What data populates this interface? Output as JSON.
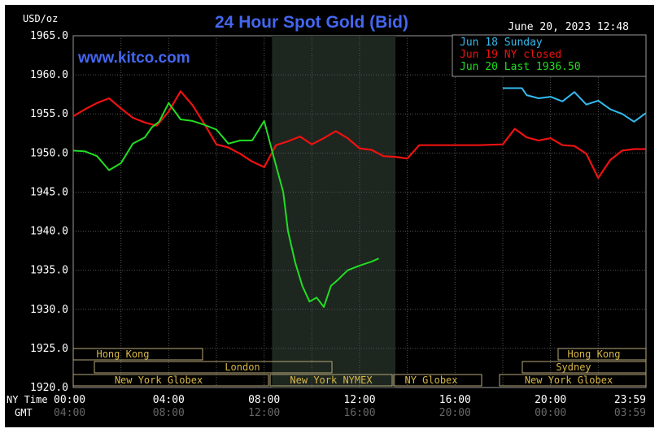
{
  "header": {
    "unit_label": "USD/oz",
    "title": "24 Hour Spot Gold (Bid)",
    "timestamp": "June 20, 2023 12:48",
    "watermark": "www.kitco.com"
  },
  "legend": [
    {
      "label": "Jun 18 Sunday",
      "color": "#33bbee"
    },
    {
      "label": "Jun 19 NY closed",
      "color": "#ee1111"
    },
    {
      "label": "Jun 20 Last 1936.50",
      "color": "#22dd22"
    }
  ],
  "axis_labels": {
    "ny_time": "NY Time",
    "gmt": "GMT",
    "ny_ticks": [
      "00:00",
      "04:00",
      "08:00",
      "12:00",
      "16:00",
      "20:00",
      "23:59"
    ],
    "gmt_ticks": [
      "04:00",
      "08:00",
      "12:00",
      "16:00",
      "20:00",
      "00:00",
      "03:59"
    ]
  },
  "sessions": {
    "hong_kong": "Hong Kong",
    "london": "London",
    "ny_globex": "New York Globex",
    "ny_nymex": "New York NYMEX",
    "ny_globex_short": "NY Globex",
    "hong_kong_2": "Hong Kong",
    "sydney": "Sydney",
    "ny_globex_2": "New York Globex"
  },
  "chart_data": {
    "type": "line",
    "title": "24 Hour Spot Gold (Bid)",
    "ylabel": "USD/oz",
    "x_unit": "NY time (hours)",
    "xlim": [
      0,
      24
    ],
    "ylim": [
      1920,
      1965
    ],
    "y_ticks": [
      1920.0,
      1925.0,
      1930.0,
      1935.0,
      1940.0,
      1945.0,
      1950.0,
      1955.0,
      1960.0,
      1965.0
    ],
    "y_tick_labels": [
      "1920.0",
      "1925.0",
      "1930.0",
      "1935.0",
      "1940.0",
      "1945.0",
      "1950.0",
      "1955.0",
      "1960.0",
      "1965.0"
    ],
    "grid": true,
    "series": [
      {
        "name": "Jun 18 Sunday",
        "color": "#33bbee",
        "x": [
          18.0,
          18.8,
          19.0,
          19.5,
          20.0,
          20.5,
          21.0,
          21.5,
          22.0,
          22.5,
          23.0,
          23.5,
          23.99
        ],
        "y": [
          1958.3,
          1958.3,
          1957.4,
          1957.0,
          1957.2,
          1956.6,
          1957.8,
          1956.2,
          1956.7,
          1955.6,
          1955.0,
          1954.0,
          1955.1
        ]
      },
      {
        "name": "Jun 19 NY closed",
        "color": "#ee1111",
        "x": [
          0.0,
          0.5,
          1.0,
          1.5,
          2.0,
          2.5,
          3.0,
          3.5,
          4.0,
          4.5,
          5.0,
          5.5,
          6.0,
          6.5,
          7.0,
          7.5,
          8.0,
          8.5,
          9.0,
          9.5,
          10.0,
          10.5,
          11.0,
          11.5,
          12.0,
          12.5,
          13.0,
          13.5,
          14.0,
          14.5,
          15.0,
          16.0,
          17.0,
          18.0,
          18.5,
          19.0,
          19.5,
          20.0,
          20.5,
          21.0,
          21.5,
          22.0,
          22.5,
          23.0,
          23.5,
          23.99
        ],
        "y": [
          1954.7,
          1955.6,
          1956.4,
          1957.0,
          1955.7,
          1954.5,
          1953.9,
          1953.5,
          1955.3,
          1957.9,
          1956.1,
          1953.7,
          1951.1,
          1950.7,
          1949.9,
          1948.9,
          1948.2,
          1951.0,
          1951.5,
          1952.1,
          1951.1,
          1951.9,
          1952.8,
          1951.9,
          1950.6,
          1950.4,
          1949.6,
          1949.5,
          1949.3,
          1951.0,
          1951.0,
          1951.0,
          1951.0,
          1951.1,
          1953.1,
          1952.0,
          1951.6,
          1951.9,
          1951.0,
          1950.9,
          1949.9,
          1946.8,
          1949.1,
          1950.3,
          1950.5,
          1950.5
        ]
      },
      {
        "name": "Jun 20 Last 1936.50",
        "color": "#22dd22",
        "x": [
          0.0,
          0.5,
          1.0,
          1.5,
          2.0,
          2.5,
          3.0,
          3.3,
          3.6,
          4.0,
          4.5,
          5.0,
          5.5,
          6.0,
          6.5,
          7.0,
          7.5,
          8.0,
          8.4,
          8.8,
          9.0,
          9.3,
          9.6,
          9.9,
          10.2,
          10.5,
          10.8,
          11.1,
          11.5,
          12.0,
          12.5,
          12.8
        ],
        "y": [
          1950.3,
          1950.2,
          1949.6,
          1947.8,
          1948.7,
          1951.2,
          1952.0,
          1953.3,
          1954.0,
          1956.4,
          1954.3,
          1954.1,
          1953.6,
          1953.0,
          1951.2,
          1951.6,
          1951.6,
          1954.1,
          1949.5,
          1945.0,
          1940.0,
          1936.0,
          1933.0,
          1931.0,
          1931.5,
          1930.3,
          1933.0,
          1933.8,
          1935.0,
          1935.6,
          1936.1,
          1936.5
        ]
      }
    ]
  }
}
